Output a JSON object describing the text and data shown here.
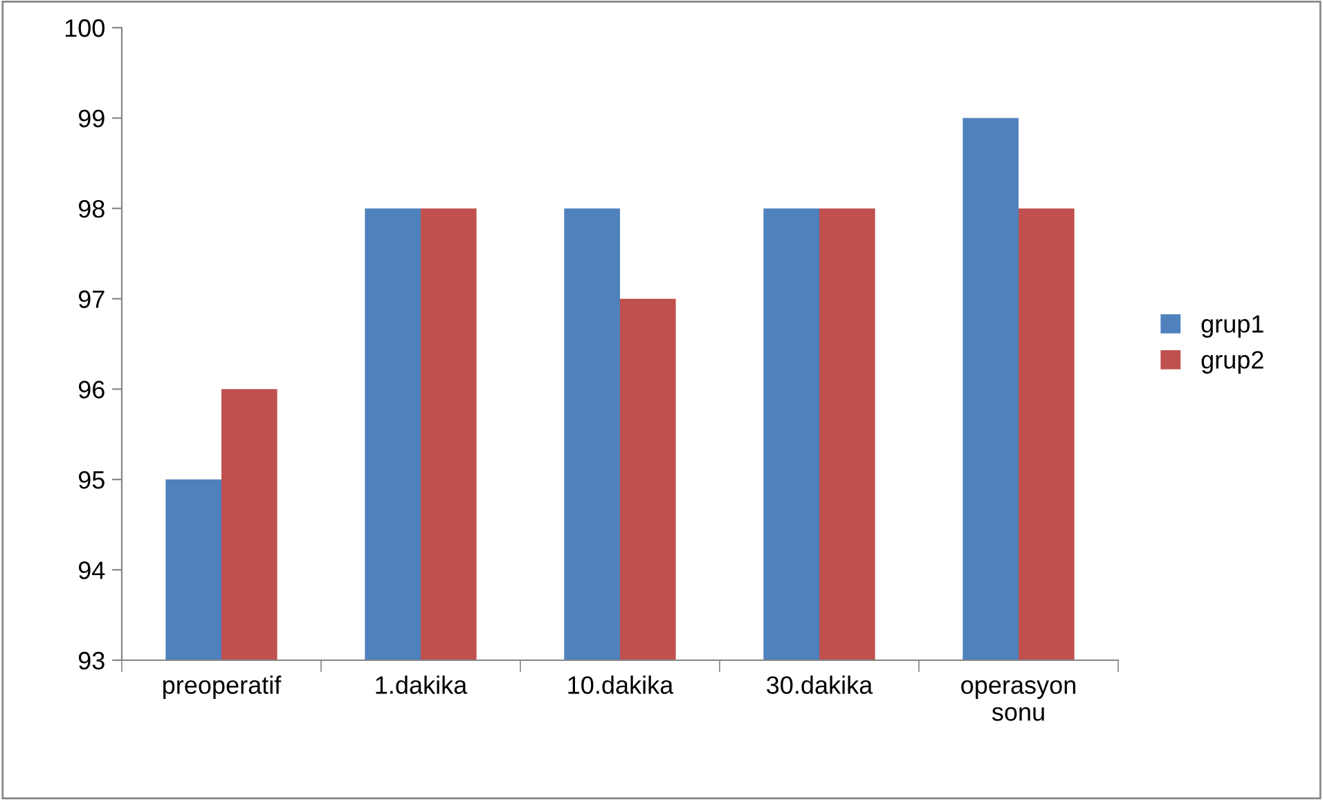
{
  "chart_data": {
    "type": "bar",
    "categories": [
      "preoperatif",
      "1.dakika",
      "10.dakika",
      "30.dakika",
      "operasyon sonu"
    ],
    "series": [
      {
        "name": "grup1",
        "color": "#4f81bd",
        "values": [
          95,
          98,
          98,
          98,
          99
        ]
      },
      {
        "name": "grup2",
        "color": "#c0504d",
        "values": [
          96,
          98,
          97,
          98,
          98
        ]
      }
    ],
    "ylim": [
      93,
      100
    ],
    "yticks": [
      93,
      94,
      95,
      96,
      97,
      98,
      99,
      100
    ],
    "grid": false,
    "legend": "right"
  }
}
